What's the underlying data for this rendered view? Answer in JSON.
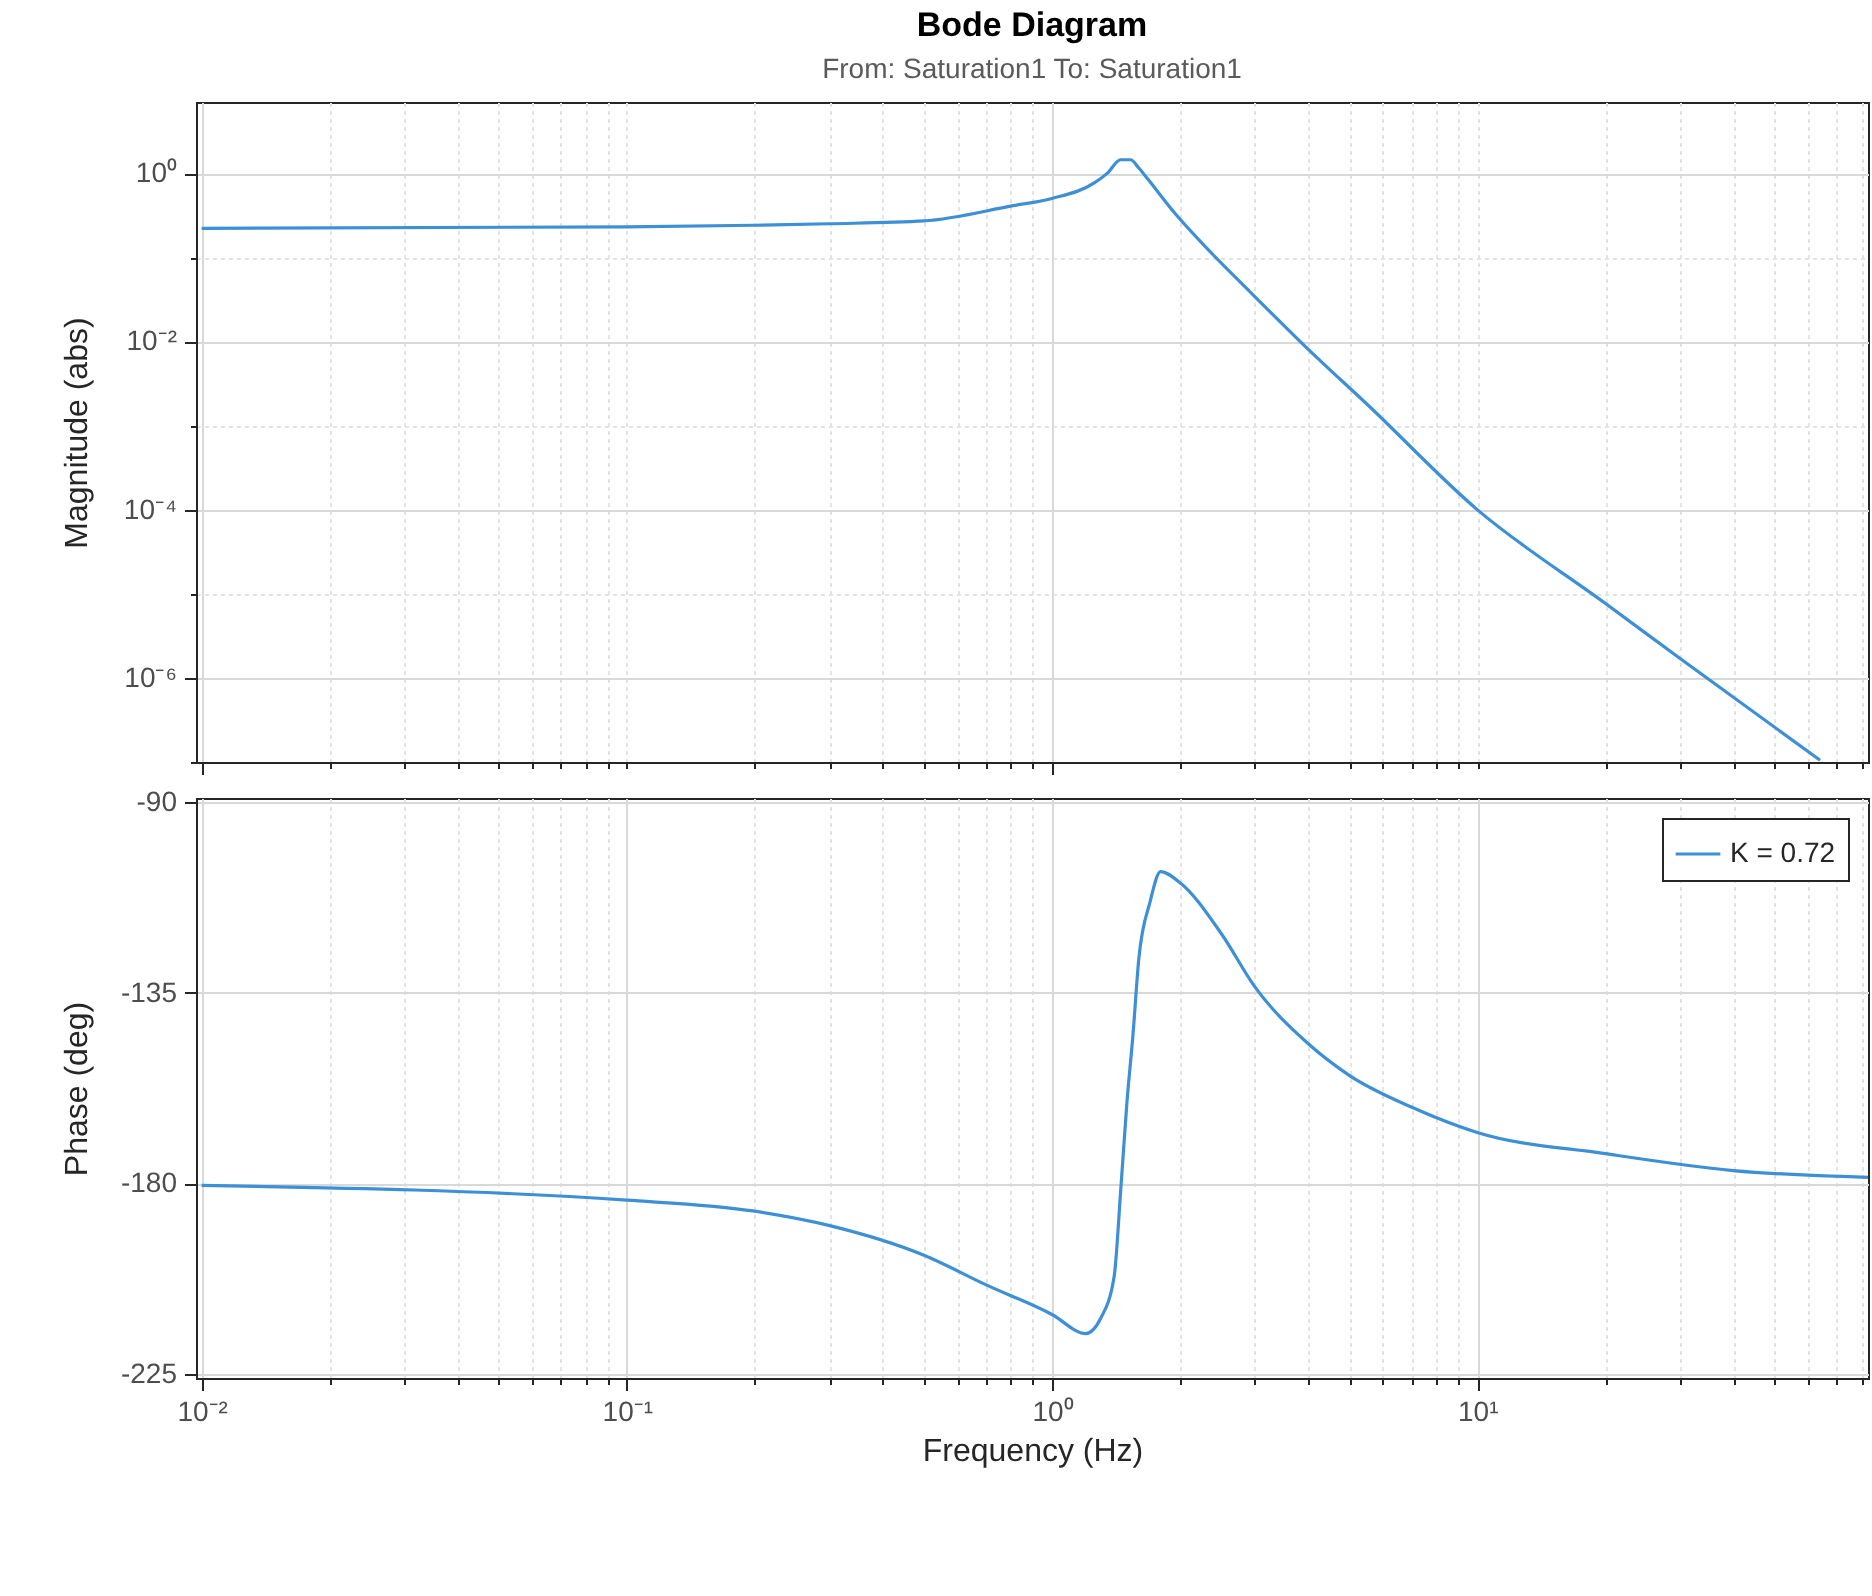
{
  "chart_data": [
    {
      "type": "line",
      "title": "Bode Diagram",
      "subtitle": "From: Saturation1  To: Saturation1",
      "ylabel": "Magnitude (abs)",
      "log": "xy",
      "grid": true,
      "tick_labels": "y",
      "xlim": [
        0.0097,
        83
      ],
      "ylim": [
        1e-07,
        7
      ],
      "xticks": [
        {
          "value": 0.01,
          "label": null
        },
        {
          "value": 0.02,
          "label": null
        },
        {
          "value": 0.03,
          "label": null
        },
        {
          "value": 0.04,
          "label": null
        },
        {
          "value": 0.05,
          "label": null
        },
        {
          "value": 0.06,
          "label": null
        },
        {
          "value": 0.07,
          "label": null
        },
        {
          "value": 0.08,
          "label": null
        },
        {
          "value": 0.09,
          "label": null
        },
        {
          "value": 0.1,
          "label": null
        },
        {
          "value": 0.2,
          "label": null
        },
        {
          "value": 0.3,
          "label": null
        },
        {
          "value": 0.4,
          "label": null
        },
        {
          "value": 0.5,
          "label": null
        },
        {
          "value": 0.6,
          "label": null
        },
        {
          "value": 0.7,
          "label": null
        },
        {
          "value": 0.8,
          "label": null
        },
        {
          "value": 0.9,
          "label": null
        },
        {
          "value": 1,
          "label": null
        },
        {
          "value": 2,
          "label": null
        },
        {
          "value": 3,
          "label": null
        },
        {
          "value": 4,
          "label": null
        },
        {
          "value": 5,
          "label": null
        },
        {
          "value": 6,
          "label": null
        },
        {
          "value": 7,
          "label": null
        },
        {
          "value": 8,
          "label": null
        },
        {
          "value": 9,
          "label": null
        },
        {
          "value": 10,
          "label": null
        },
        {
          "value": 20,
          "label": null
        },
        {
          "value": 30,
          "label": null
        },
        {
          "value": 40,
          "label": null
        },
        {
          "value": 50,
          "label": null
        },
        {
          "value": 60,
          "label": null
        },
        {
          "value": 70,
          "label": null
        },
        {
          "value": 80,
          "label": null
        }
      ],
      "yticks": [
        {
          "value": 1e-07,
          "label": null
        },
        {
          "value": 1e-06,
          "label": "10⁻⁶"
        },
        {
          "value": 1e-05,
          "label": null
        },
        {
          "value": 0.0001,
          "label": "10⁻⁴"
        },
        {
          "value": 0.001,
          "label": null
        },
        {
          "value": 0.01,
          "label": "10⁻²"
        },
        {
          "value": 0.1,
          "label": null
        },
        {
          "value": 1,
          "label": "10⁰"
        }
      ],
      "series": [
        {
          "color": "#3d8fd6",
          "x": [
            0.01,
            0.1,
            0.2,
            0.3,
            0.5,
            0.81,
            1.0,
            1.26,
            1.35,
            1.45,
            1.53,
            1.6,
            1.68,
            1.93,
            2.38,
            2.95,
            4.0,
            5.5,
            10,
            20,
            30,
            64
          ],
          "values": [
            0.22,
            0.23,
            0.24,
            0.25,
            0.27,
            0.41,
            0.5,
            0.77,
            1.0,
            1.44,
            1.44,
            1.15,
            0.85,
            0.35,
            0.11,
            0.037,
            0.0081,
            0.0018,
            0.0001,
            7.7e-06,
            1.7e-06,
            1.05e-07
          ]
        }
      ]
    },
    {
      "type": "line",
      "xlabel": "Frequency  (Hz)",
      "ylabel": "Phase (deg)",
      "log": "x",
      "grid": true,
      "legend": "top right",
      "xlim": [
        0.0097,
        83
      ],
      "ylim": [
        -226,
        -89
      ],
      "xticks": [
        {
          "value": 0.01,
          "label": "10⁻²"
        },
        {
          "value": 0.02,
          "label": null
        },
        {
          "value": 0.03,
          "label": null
        },
        {
          "value": 0.04,
          "label": null
        },
        {
          "value": 0.05,
          "label": null
        },
        {
          "value": 0.06,
          "label": null
        },
        {
          "value": 0.07,
          "label": null
        },
        {
          "value": 0.08,
          "label": null
        },
        {
          "value": 0.09,
          "label": null
        },
        {
          "value": 0.1,
          "label": "10⁻¹"
        },
        {
          "value": 0.2,
          "label": null
        },
        {
          "value": 0.3,
          "label": null
        },
        {
          "value": 0.4,
          "label": null
        },
        {
          "value": 0.5,
          "label": null
        },
        {
          "value": 0.6,
          "label": null
        },
        {
          "value": 0.7,
          "label": null
        },
        {
          "value": 0.8,
          "label": null
        },
        {
          "value": 0.9,
          "label": null
        },
        {
          "value": 1,
          "label": "10⁰"
        },
        {
          "value": 2,
          "label": null
        },
        {
          "value": 3,
          "label": null
        },
        {
          "value": 4,
          "label": null
        },
        {
          "value": 5,
          "label": null
        },
        {
          "value": 6,
          "label": null
        },
        {
          "value": 7,
          "label": null
        },
        {
          "value": 8,
          "label": null
        },
        {
          "value": 9,
          "label": null
        },
        {
          "value": 10,
          "label": "10¹"
        },
        {
          "value": 20,
          "label": null
        },
        {
          "value": 30,
          "label": null
        },
        {
          "value": 40,
          "label": null
        },
        {
          "value": 50,
          "label": null
        },
        {
          "value": 60,
          "label": null
        },
        {
          "value": 70,
          "label": null
        },
        {
          "value": 80,
          "label": null
        }
      ],
      "yticks": [
        -225,
        -180,
        -135,
        -90
      ],
      "series": [
        {
          "name": "K = 0.72",
          "color": "#3d8fd6",
          "x": [
            0.01,
            0.1,
            0.2,
            0.3,
            0.5,
            0.7,
            1.0,
            1.2,
            1.3,
            1.4,
            1.45,
            1.5,
            1.55,
            1.6,
            1.7,
            1.8,
            2.0,
            2.5,
            3,
            4,
            5,
            7,
            10,
            20,
            40,
            83
          ],
          "values": [
            -180.5,
            -184,
            -186.6,
            -190,
            -197,
            -204,
            -211,
            -215.5,
            -212,
            -202,
            -182,
            -161,
            -145,
            -127,
            -113.6,
            -106.4,
            -109,
            -121,
            -133.6,
            -147,
            -154.5,
            -162,
            -168,
            -173,
            -177,
            -178.6
          ]
        }
      ]
    }
  ]
}
